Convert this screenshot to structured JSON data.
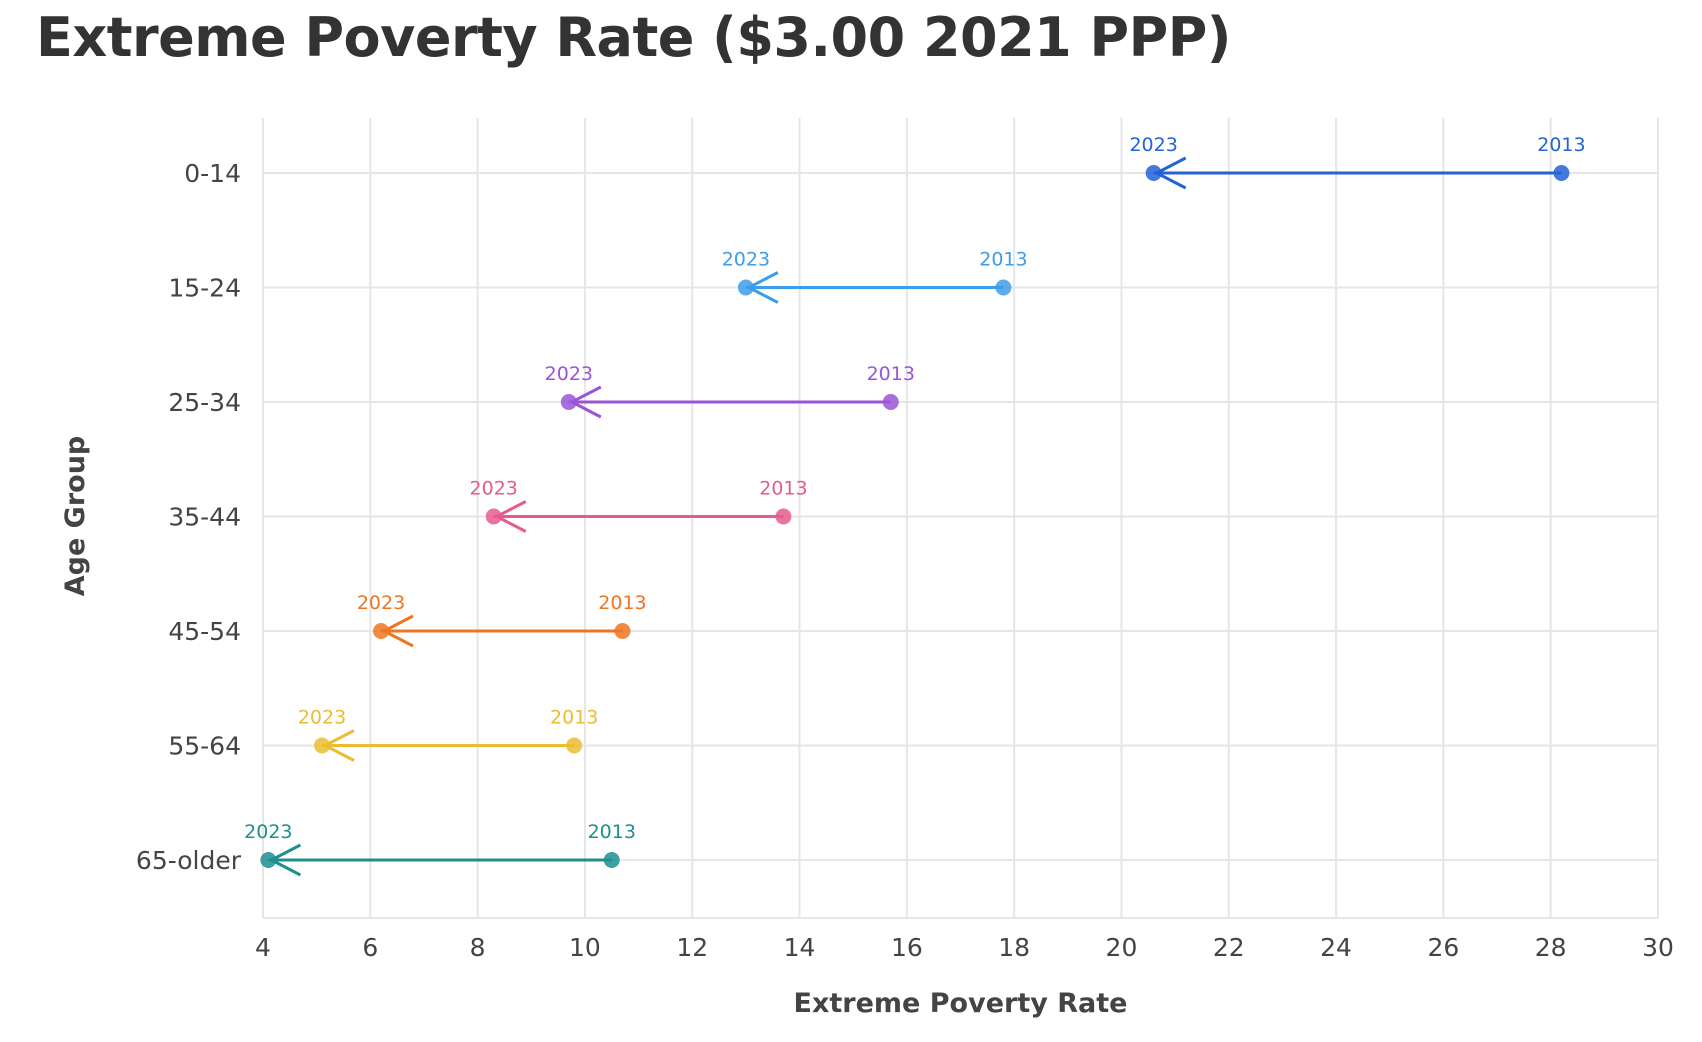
{
  "chart_data": {
    "type": "dumbbell-arrow",
    "title": "Extreme Poverty Rate ($3.00 2021 PPP)",
    "xlabel": "Extreme Poverty Rate",
    "ylabel": "Age Group",
    "xlim": [
      4,
      30
    ],
    "xticks": [
      4,
      6,
      8,
      10,
      12,
      14,
      16,
      18,
      20,
      22,
      24,
      26,
      28,
      30
    ],
    "grid": true,
    "start_label": "2013",
    "end_label": "2023",
    "series": [
      {
        "category": "0-14",
        "start": 28.2,
        "end": 20.6,
        "color": "#2463d6"
      },
      {
        "category": "15-24",
        "start": 17.8,
        "end": 13.0,
        "color": "#3d9de8"
      },
      {
        "category": "25-34",
        "start": 15.7,
        "end": 9.7,
        "color": "#9a55d6"
      },
      {
        "category": "35-44",
        "start": 13.7,
        "end": 8.3,
        "color": "#e65a8f"
      },
      {
        "category": "45-54",
        "start": 10.7,
        "end": 6.2,
        "color": "#f07521"
      },
      {
        "category": "55-64",
        "start": 9.8,
        "end": 5.1,
        "color": "#ebbd32"
      },
      {
        "category": "65-older",
        "start": 10.5,
        "end": 4.1,
        "color": "#1e8f8f"
      }
    ]
  }
}
